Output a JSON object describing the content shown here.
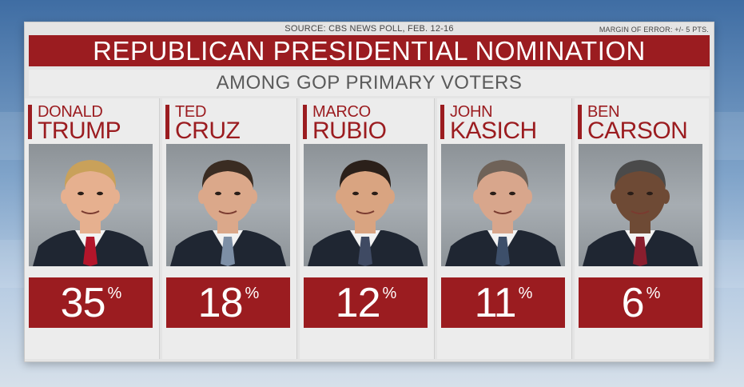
{
  "header": {
    "source": "SOURCE: CBS NEWS POLL, FEB. 12-16",
    "margin_of_error": "MARGIN OF ERROR: +/- 5 PTS.",
    "title": "REPUBLICAN PRESIDENTIAL NOMINATION",
    "subtitle": "AMONG GOP PRIMARY VOTERS"
  },
  "colors": {
    "accent_red": "#9b1c20",
    "panel_gray": "#e4e4e4",
    "subtitle_text": "#5a5a5a"
  },
  "candidates": [
    {
      "first": "DONALD",
      "last": "TRUMP",
      "value": "35",
      "sign": "%",
      "photo_icon": "candidate-portrait",
      "hair": "#c9a15a",
      "skin": "#e6b08f",
      "tie": "#b3152a"
    },
    {
      "first": "TED",
      "last": "CRUZ",
      "value": "18",
      "sign": "%",
      "photo_icon": "candidate-portrait",
      "hair": "#3a2c22",
      "skin": "#dba88a",
      "tie": "#7d8fa6"
    },
    {
      "first": "MARCO",
      "last": "RUBIO",
      "value": "12",
      "sign": "%",
      "photo_icon": "candidate-portrait",
      "hair": "#2b201a",
      "skin": "#d9a481",
      "tie": "#3f4a63"
    },
    {
      "first": "JOHN",
      "last": "KASICH",
      "value": "11",
      "sign": "%",
      "photo_icon": "candidate-portrait",
      "hair": "#6f6258",
      "skin": "#d8a68c",
      "tie": "#3d4f6a"
    },
    {
      "first": "BEN",
      "last": "CARSON",
      "value": "6",
      "sign": "%",
      "photo_icon": "candidate-portrait",
      "hair": "#4a4a4a",
      "skin": "#6e4a35",
      "tie": "#8a1e2e"
    }
  ]
}
